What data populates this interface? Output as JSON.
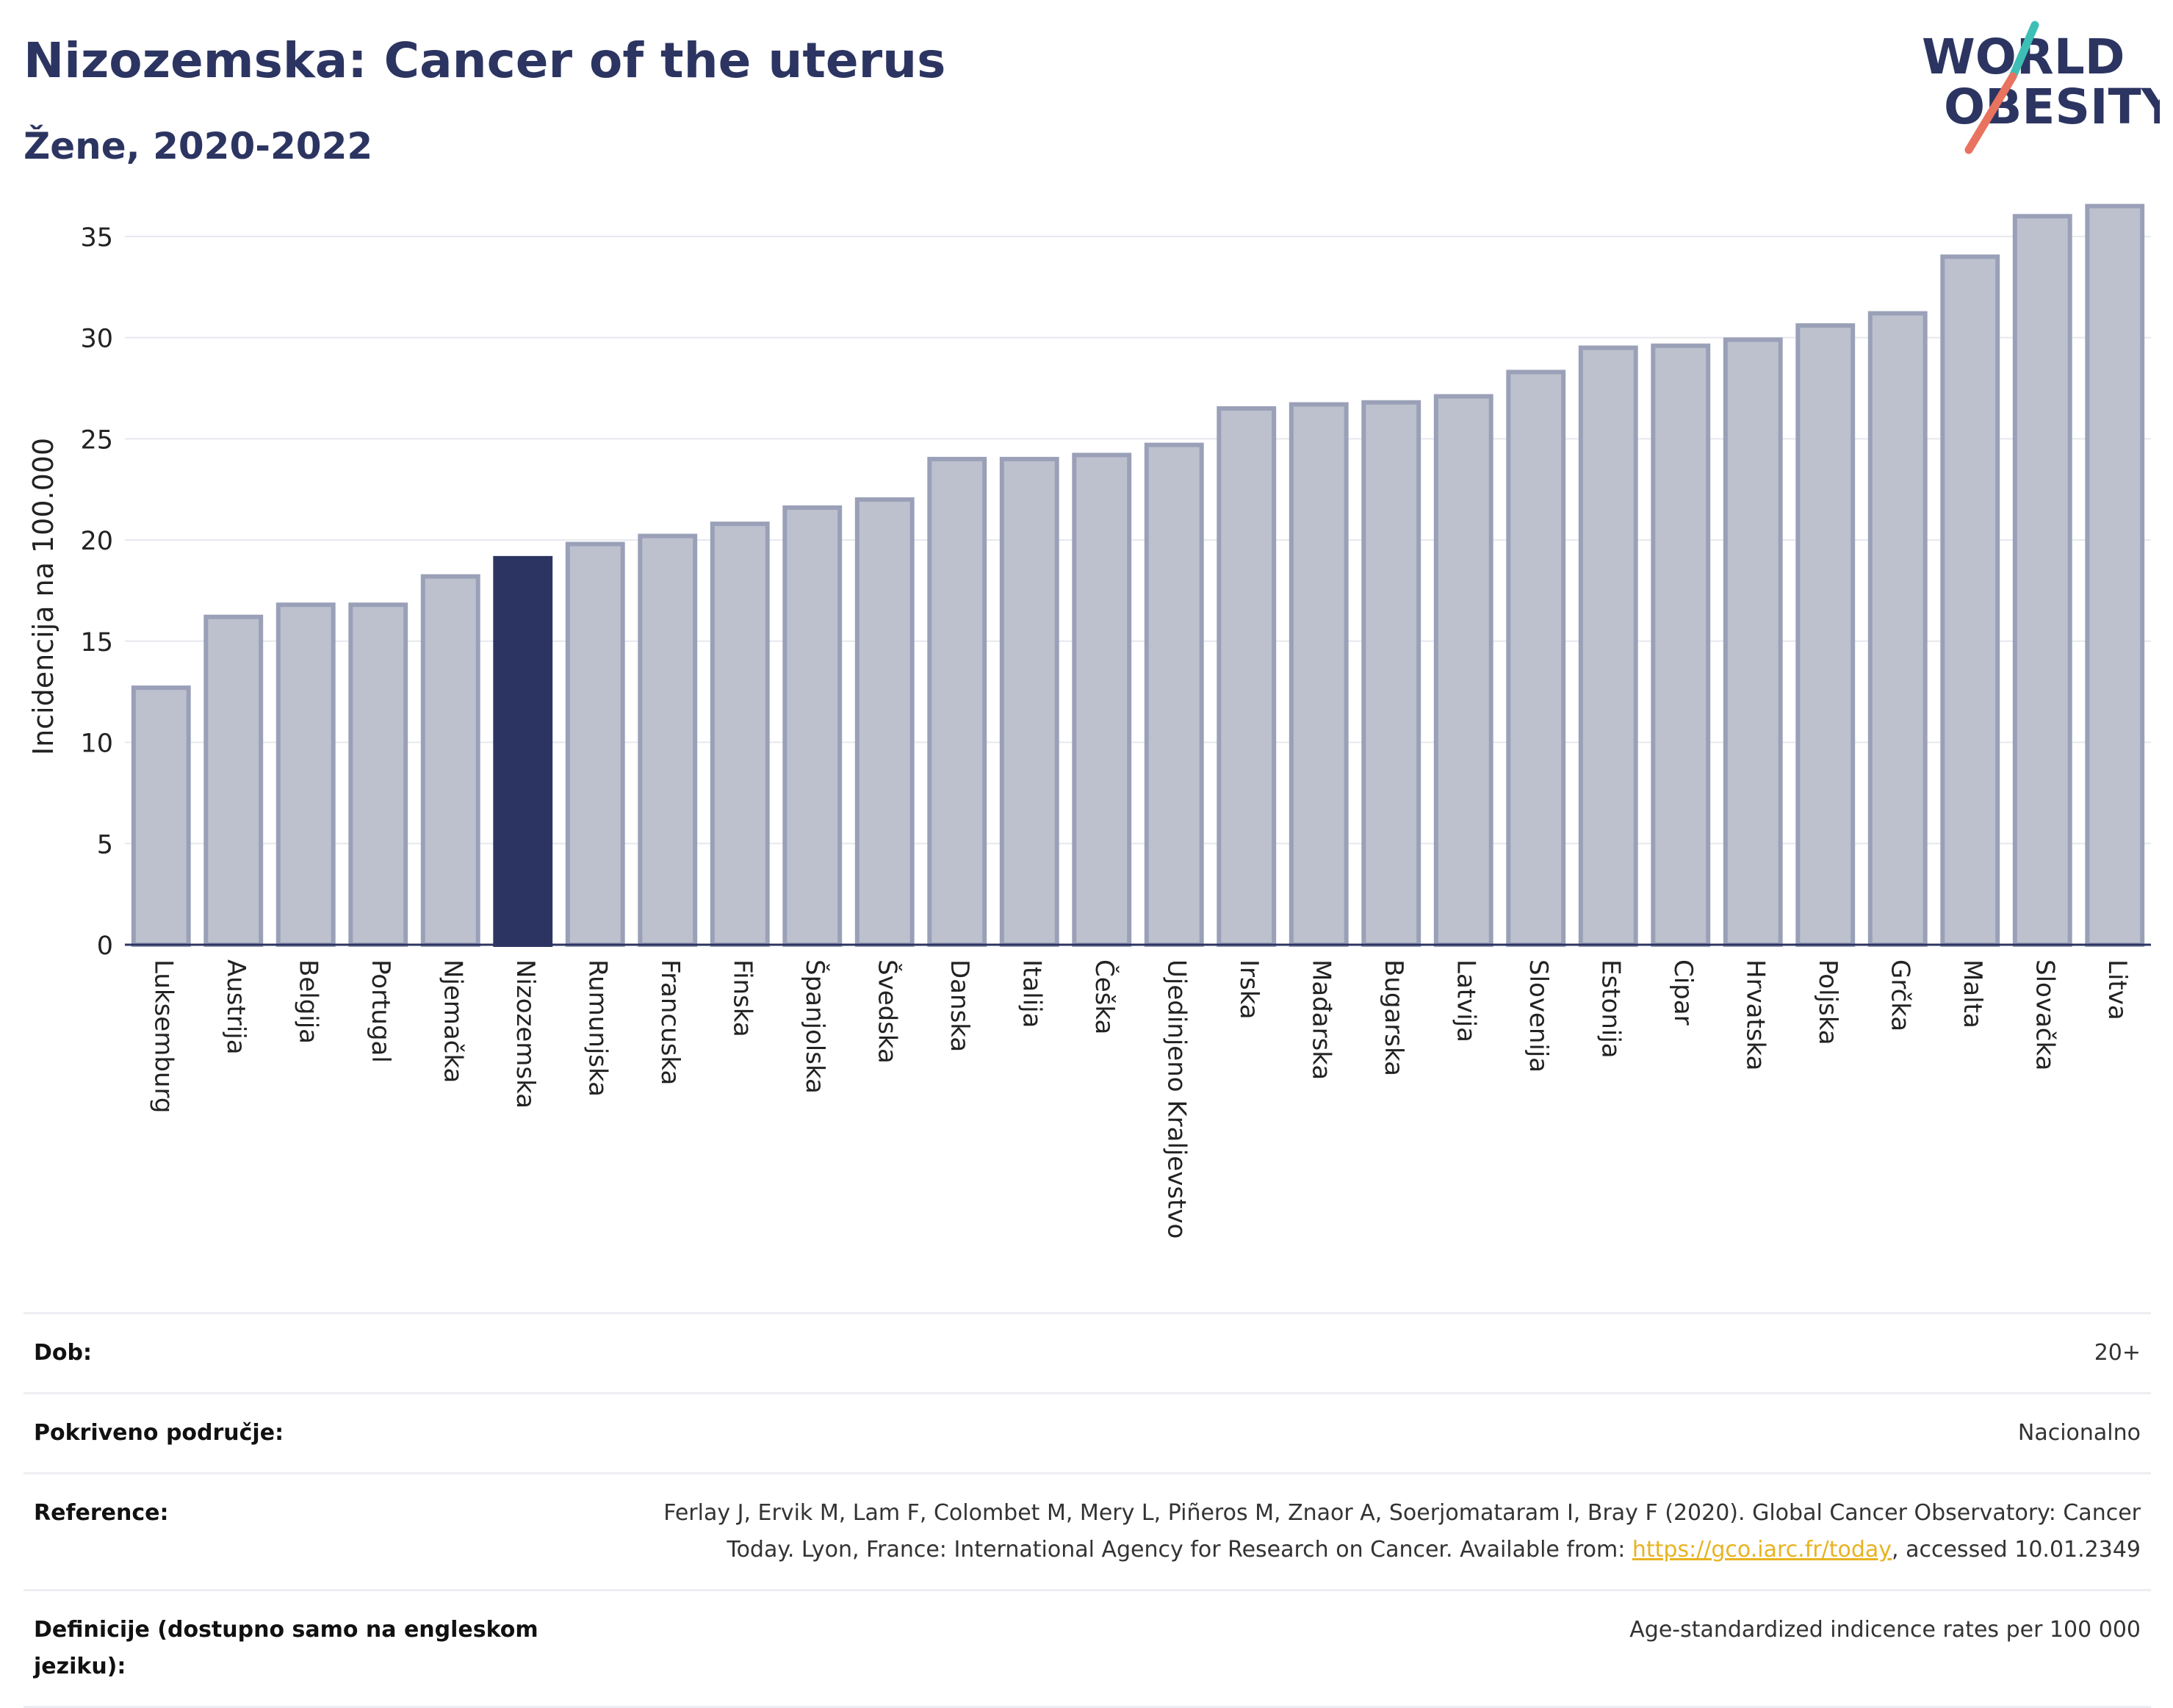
{
  "header": {
    "title": "Nizozemska: Cancer of the uterus",
    "subtitle": "Žene, 2020-2022"
  },
  "logo": {
    "line1": "WORLD",
    "line2": "OBESITY",
    "accent_teal": "#3dbfb6",
    "accent_red": "#e8735f"
  },
  "colors": {
    "bar": "#bdc1ce",
    "bar_edge": "#9aa0b7",
    "highlight": "#2c3561",
    "grid": "#e6e8ee",
    "axis": "#2c3561"
  },
  "chart_data": {
    "type": "bar",
    "ylabel": "Incidencija na 100.000",
    "xlabel": "",
    "ylim": [
      0,
      37.5
    ],
    "yticks": [
      0,
      5,
      10,
      15,
      20,
      25,
      30,
      35
    ],
    "grid": true,
    "highlight": "Nizozemska",
    "categories": [
      "Luksemburg",
      "Austrija",
      "Belgija",
      "Portugal",
      "Njemačka",
      "Nizozemska",
      "Rumunjska",
      "Francuska",
      "Finska",
      "Španjolska",
      "Švedska",
      "Danska",
      "Italija",
      "Češka",
      "Ujedinjeno Kraljevstvo",
      "Irska",
      "Mađarska",
      "Bugarska",
      "Latvija",
      "Slovenija",
      "Estonija",
      "Cipar",
      "Hrvatska",
      "Poljska",
      "Grčka",
      "Malta",
      "Slovačka",
      "Litva"
    ],
    "values": [
      12.7,
      16.2,
      16.8,
      16.8,
      18.2,
      19.1,
      19.8,
      20.2,
      20.8,
      21.6,
      22.0,
      24.0,
      24.0,
      24.2,
      24.7,
      26.5,
      26.7,
      26.8,
      27.1,
      28.3,
      29.5,
      29.6,
      29.9,
      30.6,
      31.2,
      34.0,
      36.0,
      36.5
    ]
  },
  "info": {
    "age_label": "Dob:",
    "age_value": "20+",
    "coverage_label": "Pokriveno područje:",
    "coverage_value": "Nacionalno",
    "reference_label": "Reference:",
    "reference_text_before": "Ferlay J, Ervik M, Lam F, Colombet M, Mery L, Piñeros M, Znaor A, Soerjomataram I, Bray F (2020). Global Cancer Observatory: Cancer Today. Lyon, France: International Agency for Research on Cancer. Available from: ",
    "reference_link": "https://gco.iarc.fr/today",
    "reference_text_after": ", accessed 10.01.2349",
    "definition_label": "Definicije (dostupno samo na engleskom jeziku):",
    "definition_value": "Age-standardized indicence rates per 100 000"
  }
}
